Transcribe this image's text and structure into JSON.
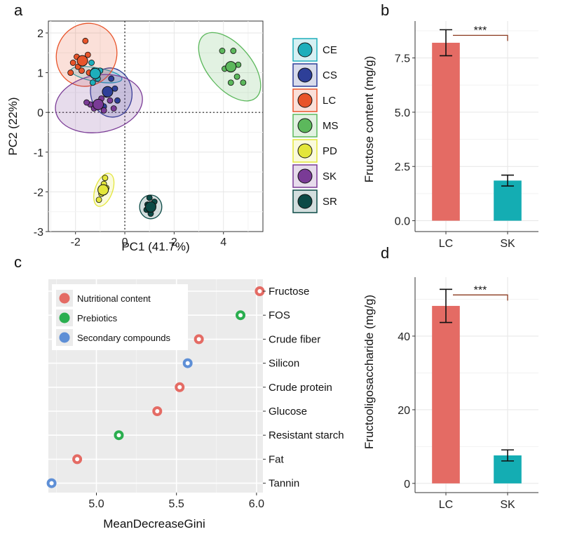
{
  "panels": {
    "a": "a",
    "b": "b",
    "c": "c",
    "d": "d"
  },
  "chart_data": [
    {
      "id": "a",
      "type": "scatter",
      "xlabel": "PC1 (41.7%)",
      "ylabel": "PC2 (22%)",
      "xlim": [
        -3.1,
        5.6
      ],
      "ylim": [
        -3.0,
        2.3
      ],
      "xticks": [
        -2,
        0,
        2,
        4
      ],
      "yticks": [
        -3,
        -2,
        -1,
        0,
        1,
        2
      ],
      "grid": true,
      "reference_lines": {
        "x": 0,
        "y": 0
      },
      "legend_position": "right",
      "groups": [
        {
          "name": "CE",
          "color": "#1eaebb",
          "centroid": [
            -1.2,
            0.98
          ],
          "points": [
            [
              -1.35,
              1.25
            ],
            [
              -1.25,
              1.05
            ],
            [
              -1.1,
              0.85
            ],
            [
              -1.3,
              0.75
            ],
            [
              -1.0,
              1.05
            ]
          ],
          "ellipse": {
            "cx": -1.15,
            "cy": 0.95,
            "rx": 0.28,
            "ry": 0.65,
            "angle": 80
          }
        },
        {
          "name": "CS",
          "color": "#2e3f98",
          "centroid": [
            -0.7,
            0.52
          ],
          "points": [
            [
              -0.55,
              0.85
            ],
            [
              -0.3,
              0.3
            ],
            [
              -0.85,
              0.15
            ],
            [
              -0.4,
              0.6
            ]
          ],
          "ellipse": {
            "cx": -0.55,
            "cy": 0.5,
            "rx": 1.0,
            "ry": 0.52,
            "angle": 100
          }
        },
        {
          "name": "LC",
          "color": "#e8542a",
          "centroid": [
            -1.72,
            1.3
          ],
          "points": [
            [
              -1.6,
              1.8
            ],
            [
              -1.9,
              1.15
            ],
            [
              -1.45,
              1.0
            ],
            [
              -2.1,
              1.25
            ],
            [
              -1.75,
              1.05
            ],
            [
              -1.5,
              1.45
            ],
            [
              -1.95,
              1.4
            ],
            [
              -2.2,
              1.0
            ]
          ],
          "ellipse": {
            "cx": -1.55,
            "cy": 1.45,
            "rx": 1.3,
            "ry": 0.75,
            "angle": 60
          }
        },
        {
          "name": "MS",
          "color": "#5cb85c",
          "centroid": [
            4.3,
            1.15
          ],
          "points": [
            [
              3.95,
              1.55
            ],
            [
              4.4,
              1.55
            ],
            [
              4.05,
              1.1
            ],
            [
              4.55,
              0.9
            ],
            [
              4.3,
              0.75
            ],
            [
              4.8,
              0.75
            ],
            [
              4.6,
              1.2
            ]
          ],
          "ellipse": {
            "cx": 4.25,
            "cy": 1.15,
            "rx": 1.65,
            "ry": 0.55,
            "angle": -50
          }
        },
        {
          "name": "PD",
          "color": "#e3e63b",
          "centroid": [
            -0.88,
            -1.95
          ],
          "points": [
            [
              -0.8,
              -1.65
            ],
            [
              -0.95,
              -2.05
            ],
            [
              -0.75,
              -1.9
            ],
            [
              -1.05,
              -2.2
            ],
            [
              -0.85,
              -1.8
            ]
          ],
          "ellipse": {
            "cx": -0.85,
            "cy": -1.95,
            "rx": 0.7,
            "ry": 0.22,
            "angle": 70
          }
        },
        {
          "name": "SK",
          "color": "#7a3b96",
          "centroid": [
            -1.08,
            0.2
          ],
          "points": [
            [
              -1.4,
              0.2
            ],
            [
              -0.6,
              0.3
            ],
            [
              -0.85,
              0.05
            ],
            [
              -1.25,
              0.1
            ],
            [
              -0.45,
              0.1
            ],
            [
              -0.75,
              0.45
            ],
            [
              -1.55,
              0.25
            ],
            [
              -0.95,
              0.35
            ]
          ],
          "ellipse": {
            "cx": -1.05,
            "cy": 0.22,
            "rx": 1.78,
            "ry": 0.72,
            "angle": 10
          }
        },
        {
          "name": "SR",
          "color": "#0c4a46",
          "centroid": [
            1.05,
            -2.38
          ],
          "points": [
            [
              0.92,
              -2.32
            ],
            [
              1.15,
              -2.35
            ],
            [
              1.05,
              -2.55
            ],
            [
              0.88,
              -2.45
            ],
            [
              1.2,
              -2.25
            ],
            [
              1.0,
              -2.15
            ]
          ],
          "ellipse": {
            "cx": 1.05,
            "cy": -2.38,
            "rx": 0.48,
            "ry": 0.28,
            "angle": 90
          }
        }
      ]
    },
    {
      "id": "b",
      "type": "bar",
      "categories": [
        "LC",
        "SK"
      ],
      "values": [
        8.2,
        1.85
      ],
      "errors": [
        0.6,
        0.25
      ],
      "colors": [
        "#e46b64",
        "#14adb3"
      ],
      "ylabel": "Fructose content (mg/g)",
      "ylim": [
        -0.5,
        9.2
      ],
      "yticks": [
        0.0,
        2.5,
        5.0,
        7.5
      ],
      "ytick_labels": [
        "0.0",
        "2.5",
        "5.0",
        "7.5"
      ],
      "significance": "***",
      "grid": true
    },
    {
      "id": "c",
      "type": "scatter",
      "xlabel": "MeanDecreaseGini",
      "xlim": [
        4.7,
        6.04
      ],
      "xticks": [
        5.0,
        5.5,
        6.0
      ],
      "xtick_labels": [
        "5.0",
        "5.5",
        "6.0"
      ],
      "legend_position": "top-left",
      "categories": [
        {
          "name": "Nutritional content",
          "color": "#e46b64"
        },
        {
          "name": "Prebiotics",
          "color": "#2aae4f"
        },
        {
          "name": "Secondary compounds",
          "color": "#5e8fd6"
        }
      ],
      "features": [
        {
          "label": "Fructose",
          "value": 6.02,
          "category": 0
        },
        {
          "label": "FOS",
          "value": 5.9,
          "category": 1
        },
        {
          "label": "Crude fiber",
          "value": 5.64,
          "category": 0
        },
        {
          "label": "Silicon",
          "value": 5.57,
          "category": 2
        },
        {
          "label": "Crude protein",
          "value": 5.52,
          "category": 0
        },
        {
          "label": "Glucose",
          "value": 5.38,
          "category": 0
        },
        {
          "label": "Resistant starch",
          "value": 5.14,
          "category": 1
        },
        {
          "label": "Fat",
          "value": 4.88,
          "category": 0
        },
        {
          "label": "Tannin",
          "value": 4.72,
          "category": 2
        }
      ],
      "grid": true
    },
    {
      "id": "d",
      "type": "bar",
      "categories": [
        "LC",
        "SK"
      ],
      "values": [
        48.2,
        7.6
      ],
      "errors": [
        4.5,
        1.5
      ],
      "colors": [
        "#e46b64",
        "#14adb3"
      ],
      "ylabel": "Fructooligosaccharide  (mg/g)",
      "ylim": [
        -2.5,
        56
      ],
      "yticks": [
        0,
        20,
        40
      ],
      "ytick_labels": [
        "0",
        "20",
        "40"
      ],
      "significance": "***",
      "grid": true
    }
  ]
}
